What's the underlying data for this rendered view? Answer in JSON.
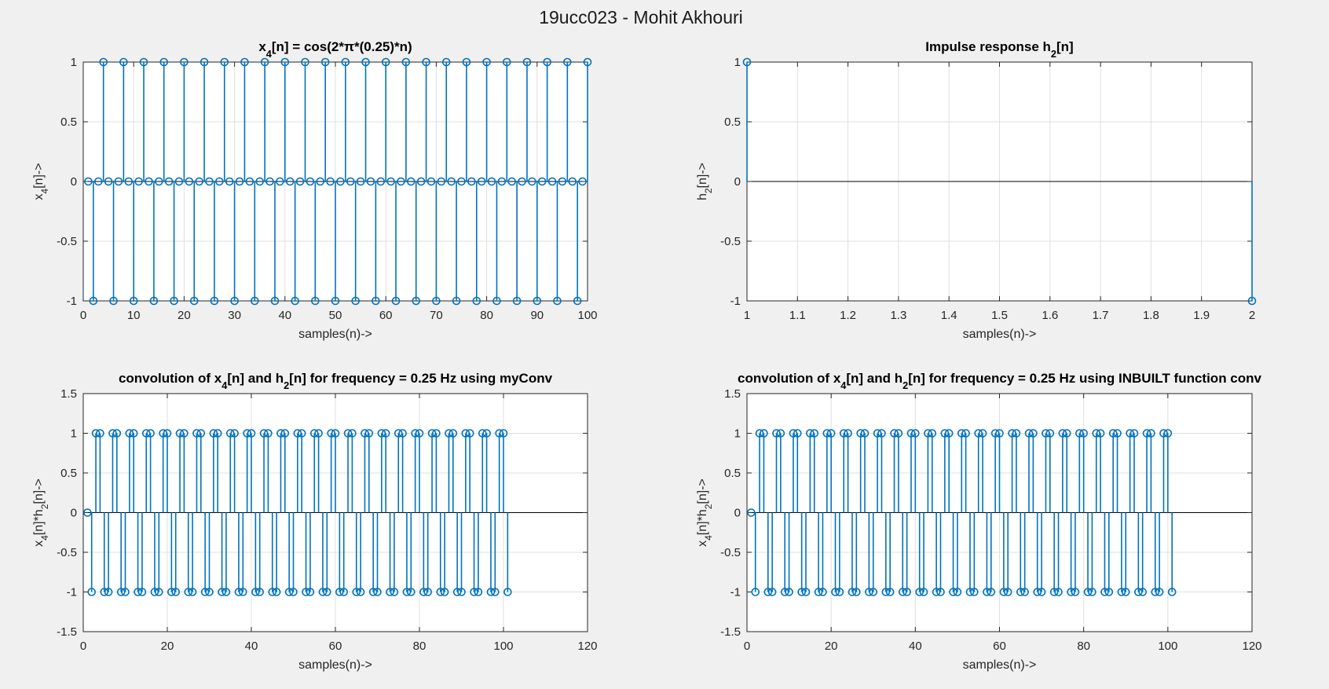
{
  "figure": {
    "title": "19ucc023 - Mohit Akhouri",
    "colors": {
      "stem": "#0072bd",
      "background": "#f0f0f0",
      "grid": "#dfdfdf"
    }
  },
  "chart_data": [
    {
      "id": "x4",
      "type": "stem",
      "title_parts": [
        [
          "x",
          ""
        ],
        [
          "4",
          "sub"
        ],
        [
          "[n] = cos(2*",
          ""
        ],
        [
          "π",
          ""
        ],
        [
          "*(0.25)*n)",
          ""
        ]
      ],
      "xlabel": "samples(n)->",
      "ylabel_parts": [
        [
          "x",
          ""
        ],
        [
          "4",
          "sub"
        ],
        [
          "[n]->",
          ""
        ]
      ],
      "xlim": [
        0,
        100
      ],
      "ylim": [
        -1,
        1
      ],
      "xticks": [
        0,
        10,
        20,
        30,
        40,
        50,
        60,
        70,
        80,
        90,
        100
      ],
      "yticks": [
        -1,
        -0.5,
        0,
        0.5,
        1
      ],
      "grid": true,
      "series": [
        {
          "generator": "cos",
          "freq": 0.25,
          "n_start": 1,
          "n_end": 100,
          "x_offset": 0
        }
      ]
    },
    {
      "id": "h2",
      "type": "stem",
      "title_parts": [
        [
          "Impulse response h",
          ""
        ],
        [
          "2",
          "sub"
        ],
        [
          "[n]",
          ""
        ]
      ],
      "xlabel": "samples(n)->",
      "ylabel_parts": [
        [
          "h",
          ""
        ],
        [
          "2",
          "sub"
        ],
        [
          "[n]->",
          ""
        ]
      ],
      "xlim": [
        1,
        2
      ],
      "ylim": [
        -1,
        1
      ],
      "xticks": [
        1,
        1.1,
        1.2,
        1.3,
        1.4,
        1.5,
        1.6,
        1.7,
        1.8,
        1.9,
        2
      ],
      "yticks": [
        -1,
        -0.5,
        0,
        0.5,
        1
      ],
      "grid": true,
      "series": [
        {
          "x": [
            1,
            2
          ],
          "y": [
            1,
            -1
          ]
        }
      ]
    },
    {
      "id": "conv_my",
      "type": "stem",
      "title_parts": [
        [
          "convolution of x",
          ""
        ],
        [
          "4",
          "sub"
        ],
        [
          "[n] and h",
          ""
        ],
        [
          "2",
          "sub"
        ],
        [
          "[n] for frequency = 0.25 Hz using myConv",
          ""
        ]
      ],
      "xlabel": "samples(n)->",
      "ylabel_parts": [
        [
          "x",
          ""
        ],
        [
          "4",
          "sub"
        ],
        [
          "[n]*h",
          ""
        ],
        [
          "2",
          "sub"
        ],
        [
          "[n]->",
          ""
        ]
      ],
      "xlim": [
        0,
        120
      ],
      "ylim": [
        -1.5,
        1.5
      ],
      "xticks": [
        0,
        20,
        40,
        60,
        80,
        100,
        120
      ],
      "yticks": [
        -1.5,
        -1,
        -0.5,
        0,
        0.5,
        1,
        1.5
      ],
      "grid": true,
      "series": [
        {
          "generator": "conv_cos",
          "freq": 0.25,
          "n_start": 1,
          "n_end": 101
        }
      ]
    },
    {
      "id": "conv_builtin",
      "type": "stem",
      "title_parts": [
        [
          "convolution of x",
          ""
        ],
        [
          "4",
          "sub"
        ],
        [
          "[n] and h",
          ""
        ],
        [
          "2",
          "sub"
        ],
        [
          "[n] for frequency = 0.25 Hz using INBUILT function conv",
          ""
        ]
      ],
      "xlabel": "samples(n)->",
      "ylabel_parts": [
        [
          "x",
          ""
        ],
        [
          "4",
          "sub"
        ],
        [
          "[n]*h",
          ""
        ],
        [
          "2",
          "sub"
        ],
        [
          "[n]->",
          ""
        ]
      ],
      "xlim": [
        0,
        120
      ],
      "ylim": [
        -1.5,
        1.5
      ],
      "xticks": [
        0,
        20,
        40,
        60,
        80,
        100,
        120
      ],
      "yticks": [
        -1.5,
        -1,
        -0.5,
        0,
        0.5,
        1,
        1.5
      ],
      "grid": true,
      "series": [
        {
          "generator": "conv_cos",
          "freq": 0.25,
          "n_start": 1,
          "n_end": 101
        }
      ]
    }
  ]
}
